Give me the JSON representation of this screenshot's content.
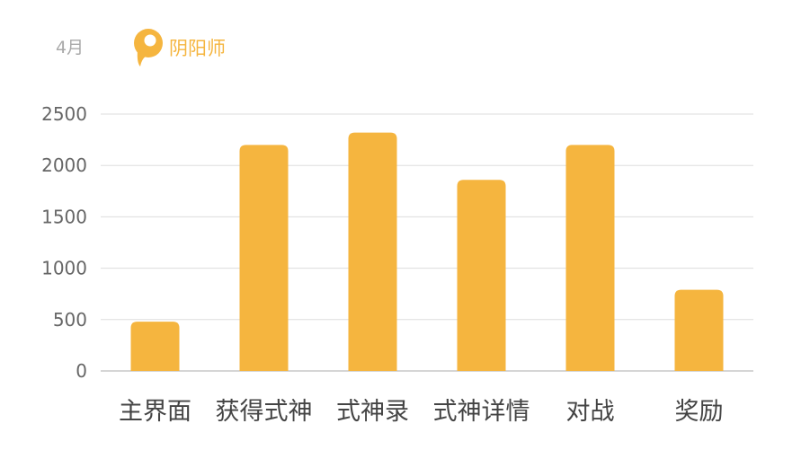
{
  "header": {
    "month": "4月",
    "brand_name": "阴阳师",
    "brand_icon": "pin-logo-icon"
  },
  "colors": {
    "bar": "#f5b53f",
    "grid": "#dddddd",
    "axis": "#c8c8c8"
  },
  "chart_data": {
    "type": "bar",
    "categories": [
      "主界面",
      "获得式神",
      "式神录",
      "式神详情",
      "对战",
      "奖励"
    ],
    "values": [
      480,
      2200,
      2320,
      1860,
      2200,
      790
    ],
    "ylim": [
      0,
      2500
    ],
    "yticks": [
      0,
      500,
      1000,
      1500,
      2000,
      2500
    ],
    "grid": true
  }
}
